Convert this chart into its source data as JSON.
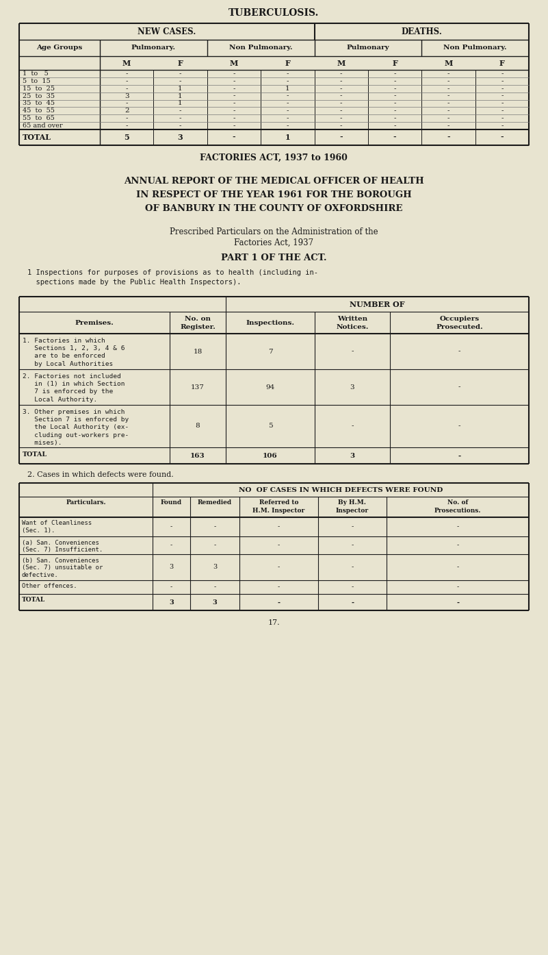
{
  "bg_color": "#e8e4d0",
  "title_tb": "TUBERCULOSIS.",
  "factories_act_title": "FACTORIES ACT, 1937 to 1960",
  "annual_report_lines": [
    "ANNUAL REPORT OF THE MEDICAL OFFICER OF HEALTH",
    "IN RESPECT OF THE YEAR 1961 FOR THE BOROUGH",
    "OF BANBURY IN THE COUNTY OF OXFORDSHIRE"
  ],
  "prescribed_lines": [
    "Prescribed Particulars on the Administration of the",
    "Factories Act, 1937"
  ],
  "part1_title": "PART 1 OF THE ACT.",
  "inspection_text_line1": "1 Inspections for purposes of provisions as to health (including in-",
  "inspection_text_line2": "  spections made by the Public Health Inspectors).",
  "tb_age_rows": [
    [
      "1  to   5",
      "-",
      "-",
      "-",
      "-",
      "-",
      "-",
      "-",
      "-"
    ],
    [
      "5  to  15",
      "-",
      "-",
      "-",
      "-",
      "-",
      "-",
      "-",
      "-"
    ],
    [
      "15  to  25",
      "-",
      "1",
      "-",
      "1",
      "-",
      "-",
      "-",
      "-"
    ],
    [
      "25  to  35",
      "3",
      "1",
      "-",
      "-",
      "-",
      "-",
      "-",
      "-"
    ],
    [
      "35  to  45",
      "-",
      "1",
      "-",
      "-",
      "-",
      "-",
      "-",
      "-"
    ],
    [
      "45  to  55",
      "2",
      "-",
      "-",
      "-",
      "-",
      "-",
      "-",
      "-"
    ],
    [
      "55  to  65",
      "-",
      "-",
      "-",
      "-",
      "-",
      "-",
      "-",
      "-"
    ],
    [
      "65 and over",
      "-",
      "-",
      "-",
      "-",
      "-",
      "-",
      "-",
      "-"
    ]
  ],
  "tb_total_row": [
    "TOTAL",
    "5",
    "3",
    "-",
    "1",
    "-",
    "-",
    "-",
    "-"
  ],
  "insp_rows": [
    [
      "1. Factories in which\n   Sections 1, 2, 3, 4 & 6\n   are to be enforced\n   by Local Authorities",
      "18",
      "7",
      "-",
      "-"
    ],
    [
      "2. Factories not included\n   in (1) in which Section\n   7 is enforced by the\n   Local Authority.",
      "137",
      "94",
      "3",
      "-"
    ],
    [
      "3. Other premises in which\n   Section 7 is enforced by\n   the Local Authority (ex-\n   cluding out-workers pre-\n   mises).",
      "8",
      "5",
      "-",
      "-"
    ],
    [
      "TOTAL",
      "163",
      "106",
      "3",
      "-"
    ]
  ],
  "cases_title": "2. Cases in which defects were found.",
  "cases_header": "NO  OF CASES IN WHICH DEFECTS WERE FOUND",
  "cases_rows": [
    [
      "Want of Cleanliness\n(Sec. 1).",
      "-",
      "-",
      "-",
      "-",
      "-"
    ],
    [
      "(a) San. Conveniences\n(Sec. 7) Insufficient.",
      "-",
      "-",
      "-",
      "-",
      "-"
    ],
    [
      "(b) San. Conveniences\n(Sec. 7) unsuitable or\ndefective.",
      "3",
      "3",
      "-",
      "-",
      "-"
    ],
    [
      "Other offences.",
      "-",
      "-",
      "-",
      "-",
      "-"
    ],
    [
      "TOTAL",
      "3",
      "3",
      "-",
      "-",
      "-"
    ]
  ],
  "page_number": "17."
}
